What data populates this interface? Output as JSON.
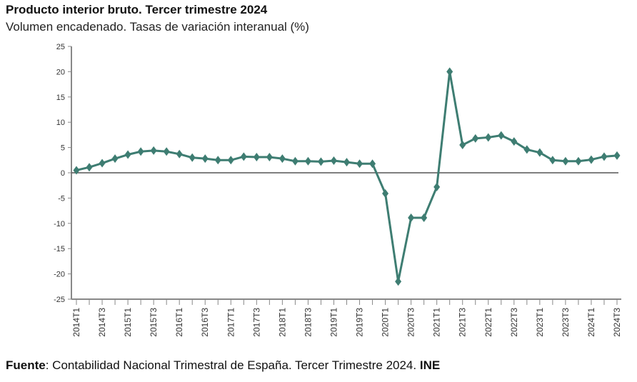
{
  "chart_data": {
    "type": "line",
    "title": "Producto interior bruto. Tercer trimestre 2024",
    "subtitle": "Volumen encadenado. Tasas de variación interanual (%)",
    "x": [
      "2014T1",
      "2014T2",
      "2014T3",
      "2014T4",
      "2015T1",
      "2015T2",
      "2015T3",
      "2015T4",
      "2016T1",
      "2016T2",
      "2016T3",
      "2016T4",
      "2017T1",
      "2017T2",
      "2017T3",
      "2017T4",
      "2018T1",
      "2018T2",
      "2018T3",
      "2018T4",
      "2019T1",
      "2019T2",
      "2019T3",
      "2019T4",
      "2020T1",
      "2020T2",
      "2020T3",
      "2020T4",
      "2021T1",
      "2021T2",
      "2021T3",
      "2021T4",
      "2022T1",
      "2022T2",
      "2022T3",
      "2022T4",
      "2023T1",
      "2023T2",
      "2023T3",
      "2023T4",
      "2024T1",
      "2024T2",
      "2024T3"
    ],
    "values": [
      0.5,
      1.1,
      1.9,
      2.8,
      3.6,
      4.2,
      4.4,
      4.2,
      3.7,
      3.0,
      2.8,
      2.5,
      2.5,
      3.2,
      3.1,
      3.1,
      2.8,
      2.3,
      2.3,
      2.2,
      2.4,
      2.1,
      1.8,
      1.8,
      -4.1,
      -21.5,
      -8.9,
      -8.9,
      -2.8,
      20.0,
      5.5,
      6.8,
      7.0,
      7.4,
      6.2,
      4.6,
      4.0,
      2.5,
      2.3,
      2.3,
      2.6,
      3.2,
      3.4
    ],
    "ylim": [
      -25,
      25
    ],
    "yticks": [
      25,
      20,
      15,
      10,
      5,
      0,
      -5,
      -10,
      -15,
      -20,
      -25
    ],
    "xtick_labels": [
      "2014T1",
      "2014T3",
      "2015T1",
      "2015T3",
      "2016T1",
      "2016T3",
      "2017T1",
      "2017T3",
      "2018T1",
      "2018T3",
      "2019T1",
      "2019T3",
      "2020T1",
      "2020T3",
      "2021T1",
      "2021T3",
      "2022T1",
      "2022T3",
      "2023T1",
      "2023T3",
      "2024T1",
      "2024T3"
    ],
    "grid": false,
    "marker": "diamond",
    "line_color": "#3e7d72"
  },
  "source": {
    "label": "Fuente",
    "text": ": Contabilidad Nacional Trimestral de España. Tercer Trimestre 2024. ",
    "org": "INE"
  }
}
